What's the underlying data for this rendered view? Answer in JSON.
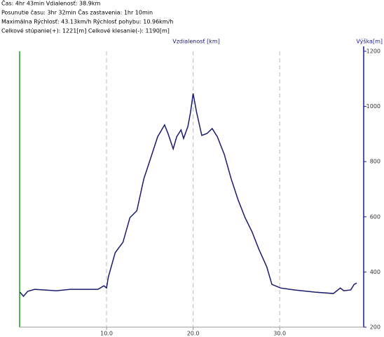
{
  "header": {
    "lines": [
      "Čas: 4hr 43min  Vdialenosť: 38.9km",
      "Posunutie času: 3hr 32min  Čas zastavenia: 1hr 10min",
      "Maximálna Rýchlosť: 43.13km/h  Rýchlosť pohybu: 10.96km/h",
      "Celkové stúpanie(+): 1221[m]  Celkové klesanie(-): 1190[m]"
    ]
  },
  "chart_data": {
    "type": "line",
    "x_label": "Vzdialenosť [km]",
    "y_label": "Výška[m]",
    "x": [
      0,
      0.4,
      0.9,
      1.7,
      4.2,
      5.8,
      9.0,
      9.7,
      10.0,
      10.2,
      11.0,
      11.9,
      12.7,
      13.5,
      14.3,
      15.1,
      15.9,
      16.7,
      17.1,
      17.7,
      18.1,
      18.6,
      18.9,
      19.4,
      19.7,
      20.0,
      20.4,
      21.0,
      21.6,
      22.2,
      22.8,
      23.6,
      24.4,
      25.2,
      26.0,
      26.8,
      27.6,
      28.5,
      29.1,
      30.1,
      31.7,
      34.1,
      36.2,
      37.0,
      37.4,
      38.2,
      38.6,
      38.9
    ],
    "series": [
      {
        "name": "Výška",
        "color": "#1a1a6e",
        "values": [
          327,
          312,
          330,
          337,
          332,
          337,
          337,
          350,
          342,
          381,
          470,
          508,
          597,
          622,
          737,
          813,
          890,
          933,
          902,
          846,
          890,
          915,
          884,
          928,
          979,
          1047,
          979,
          895,
          902,
          920,
          890,
          826,
          737,
          661,
          597,
          546,
          482,
          419,
          355,
          342,
          335,
          327,
          322,
          342,
          332,
          335,
          355,
          360
        ]
      }
    ],
    "xlim": [
      0,
      39.7
    ],
    "ylim": [
      200,
      1200
    ],
    "xticks": [
      {
        "value": 10,
        "label": "10.0"
      },
      {
        "value": 20,
        "label": "20.0"
      },
      {
        "value": 30,
        "label": "30.0"
      }
    ],
    "yticks": [
      200,
      400,
      600,
      800,
      1000,
      1200
    ],
    "grid": true
  }
}
